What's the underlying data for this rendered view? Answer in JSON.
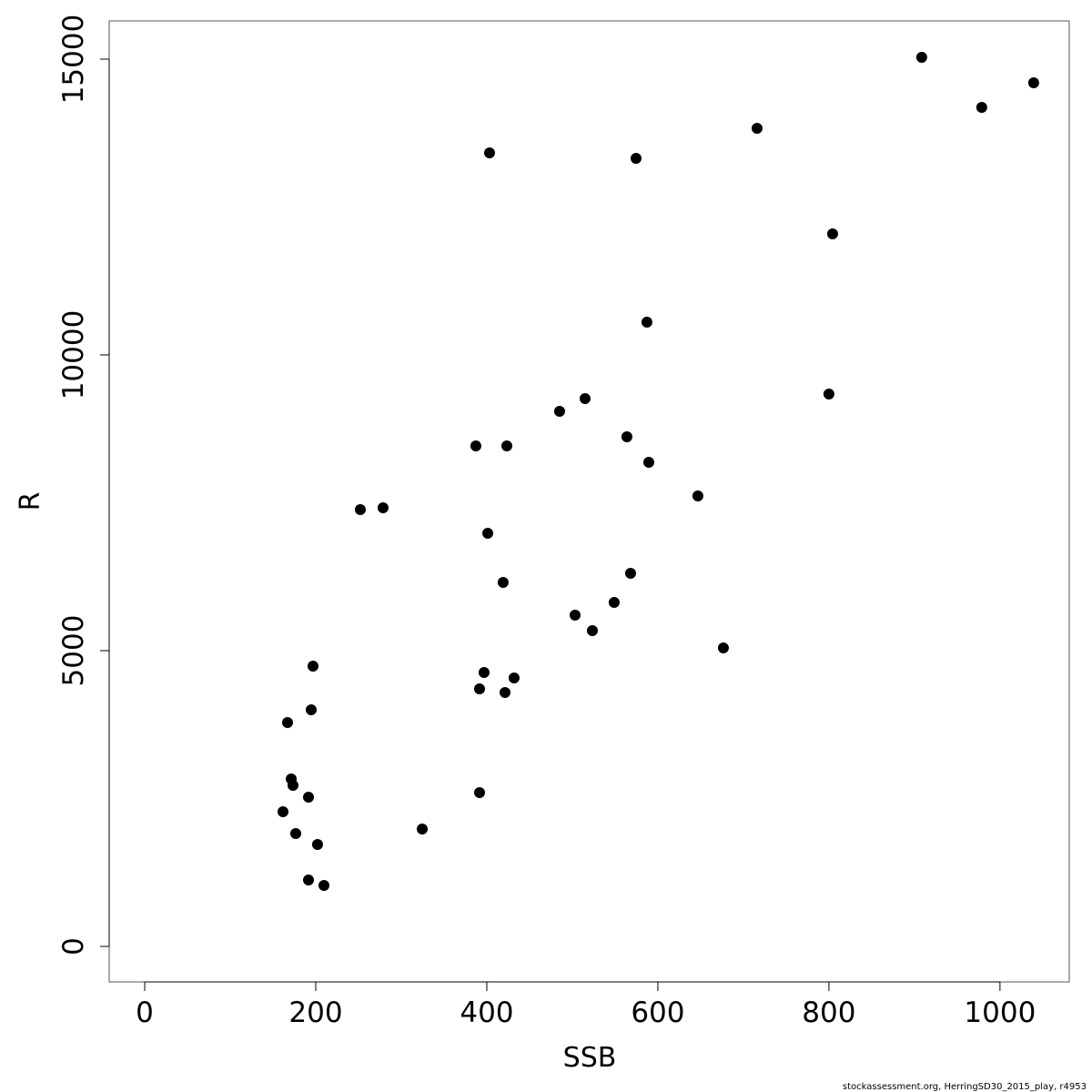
{
  "chart_data": {
    "type": "scatter",
    "xlabel": "SSB",
    "ylabel": "R",
    "footnote": "stockassessment.org, HerringSD30_2015_play, r4953",
    "color": "#000000",
    "xlim": [
      -41.5,
      1081
    ],
    "ylim": [
      -600,
      15646
    ],
    "xticks": [
      0,
      200,
      400,
      600,
      800,
      1000
    ],
    "yticks": [
      0,
      5000,
      10000,
      15000
    ],
    "x": [
      908.5,
      1039.4,
      978.7,
      716,
      403.2,
      574.5,
      804.3,
      587.2,
      800,
      514.9,
      485.1,
      563.8,
      387.2,
      423.4,
      589.4,
      646.8,
      252.1,
      278.7,
      401.1,
      419.1,
      568.1,
      548.9,
      503.2,
      523.4,
      676.6,
      196.8,
      396.8,
      431.9,
      391.5,
      421.3,
      194.7,
      167,
      171.3,
      173.4,
      191.5,
      391.5,
      161.7,
      324.5,
      176.6,
      202.1,
      191.5,
      209.6
    ],
    "values": [
      15031,
      14600,
      14185,
      13831,
      13415,
      13323,
      12046,
      10554,
      9338,
      9262,
      9046,
      8615,
      8462,
      8462,
      8185,
      7615,
      7385,
      7415,
      6985,
      6154,
      6308,
      5815,
      5600,
      5338,
      5046,
      4738,
      4631,
      4538,
      4354,
      4292,
      4000,
      3785,
      2831,
      2723,
      2523,
      2600,
      2277,
      1985,
      1908,
      1723,
      1123,
      1031
    ]
  }
}
